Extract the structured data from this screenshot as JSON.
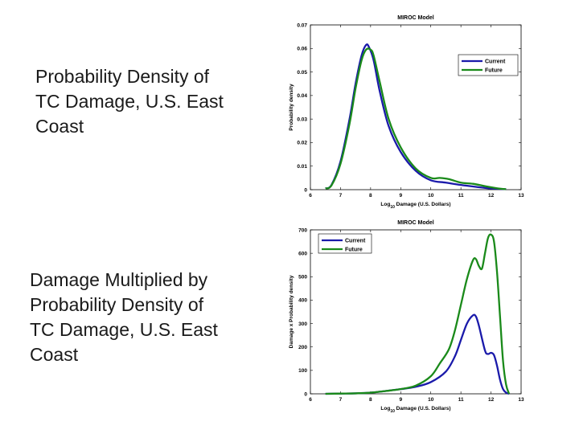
{
  "captions": {
    "top": "Probability Density of TC Damage, U.S. East Coast",
    "bottom": "Damage Multiplied by Probability Density of TC Damage, U.S. East Coast"
  },
  "chart_data": [
    {
      "type": "line",
      "title": "MIROC Model",
      "xlabel": "Log10 Damage (U.S. Dollars)",
      "xlabel_base": "Log",
      "xlabel_sub": "10",
      "xlabel_rest": " Damage (U.S. Dollars)",
      "ylabel": "Probability density",
      "xlim": [
        6,
        13
      ],
      "ylim": [
        0,
        0.07
      ],
      "xticks": [
        6,
        7,
        8,
        9,
        10,
        11,
        12,
        13
      ],
      "yticks": [
        0,
        0.01,
        0.02,
        0.03,
        0.04,
        0.05,
        0.06,
        0.07
      ],
      "ytick_labels": [
        "0",
        "0.01",
        "0.02",
        "0.03",
        "0.04",
        "0.05",
        "0.06",
        "0.07"
      ],
      "legend_position": "top-right",
      "series": [
        {
          "name": "Current",
          "color": "#1a1aaa",
          "x": [
            6.5,
            6.7,
            7.0,
            7.3,
            7.5,
            7.7,
            7.85,
            7.95,
            8.1,
            8.3,
            8.6,
            9.0,
            9.5,
            10.0,
            10.5,
            11.0,
            11.5,
            12.0,
            12.5
          ],
          "y": [
            0.0005,
            0.002,
            0.012,
            0.03,
            0.045,
            0.057,
            0.0615,
            0.0605,
            0.055,
            0.042,
            0.027,
            0.016,
            0.008,
            0.004,
            0.003,
            0.002,
            0.0012,
            0.0005,
            0.0002
          ]
        },
        {
          "name": "Future",
          "color": "#1a8a1a",
          "x": [
            6.5,
            6.7,
            7.0,
            7.3,
            7.5,
            7.7,
            7.85,
            8.0,
            8.1,
            8.3,
            8.6,
            9.0,
            9.5,
            10.0,
            10.3,
            10.6,
            11.0,
            11.4,
            11.8,
            12.2,
            12.5
          ],
          "y": [
            0.0005,
            0.0018,
            0.011,
            0.028,
            0.043,
            0.055,
            0.0595,
            0.0595,
            0.057,
            0.046,
            0.03,
            0.018,
            0.009,
            0.005,
            0.005,
            0.0045,
            0.003,
            0.0025,
            0.0015,
            0.0006,
            0.0002
          ]
        }
      ]
    },
    {
      "type": "line",
      "title": "MIROC Model",
      "xlabel": "Log10 Damage (U.S. Dollars)",
      "xlabel_base": "Log",
      "xlabel_sub": "10",
      "xlabel_rest": " Damage (U.S. Dollars)",
      "ylabel": "Damage x Probability density",
      "xlim": [
        6,
        13
      ],
      "ylim": [
        0,
        700
      ],
      "xticks": [
        6,
        7,
        8,
        9,
        10,
        11,
        12,
        13
      ],
      "yticks": [
        0,
        100,
        200,
        300,
        400,
        500,
        600,
        700
      ],
      "ytick_labels": [
        "0",
        "100",
        "200",
        "300",
        "400",
        "500",
        "600",
        "700"
      ],
      "legend_position": "top-left",
      "series": [
        {
          "name": "Current",
          "color": "#1a1aaa",
          "x": [
            6.5,
            7.0,
            7.5,
            8.0,
            8.5,
            9.0,
            9.5,
            10.0,
            10.5,
            10.8,
            11.0,
            11.2,
            11.4,
            11.5,
            11.6,
            11.8,
            11.9,
            12.0,
            12.1,
            12.2,
            12.3,
            12.4,
            12.5,
            12.6
          ],
          "y": [
            0,
            1,
            2,
            5,
            12,
            20,
            30,
            50,
            95,
            160,
            230,
            300,
            335,
            330,
            290,
            185,
            170,
            175,
            165,
            120,
            60,
            20,
            5,
            0
          ]
        },
        {
          "name": "Future",
          "color": "#1a8a1a",
          "x": [
            6.5,
            7.0,
            7.5,
            8.0,
            8.5,
            9.0,
            9.5,
            10.0,
            10.3,
            10.6,
            10.8,
            11.0,
            11.2,
            11.4,
            11.5,
            11.6,
            11.7,
            11.8,
            11.9,
            12.0,
            12.1,
            12.2,
            12.3,
            12.4,
            12.5,
            12.6
          ],
          "y": [
            0,
            1,
            2,
            5,
            12,
            20,
            35,
            75,
            130,
            190,
            270,
            380,
            490,
            570,
            575,
            545,
            535,
            600,
            665,
            680,
            650,
            520,
            330,
            140,
            40,
            0
          ]
        }
      ]
    }
  ]
}
